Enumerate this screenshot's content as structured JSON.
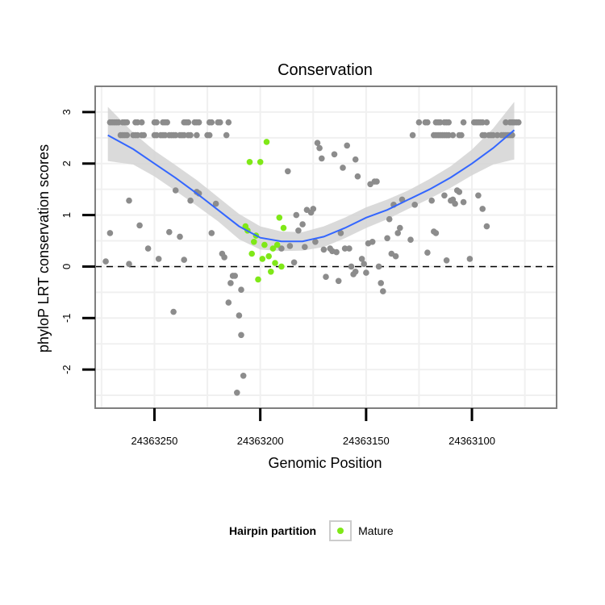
{
  "chart_data": {
    "type": "scatter",
    "title": "Conservation",
    "xlabel": "Genomic Position",
    "ylabel": "phyloP LRT conservation scores",
    "x_reversed": true,
    "xlim": [
      24363278,
      24363060
    ],
    "ylim": [
      -2.75,
      3.5
    ],
    "x_ticks": [
      24363250,
      24363200,
      24363150,
      24363100
    ],
    "x_tick_labels": [
      "24363250",
      "24363200",
      "24363150",
      "24363100"
    ],
    "y_ticks": [
      -2,
      -1,
      0,
      1,
      2,
      3
    ],
    "y_tick_labels": [
      "-2",
      "-1",
      "0",
      "1",
      "2",
      "3"
    ],
    "hline": {
      "y": 0,
      "style": "dashed"
    },
    "legend": {
      "title": "Hairpin partition",
      "entries": [
        {
          "label": "Mature",
          "color": "#7FE817"
        }
      ]
    },
    "colors": {
      "other": "#8C8C8C",
      "mature": "#7FE817",
      "smooth": "#3366FF",
      "ribbon": "#D3D3D3",
      "panel_border": "#7F7F7F",
      "grid": "#F0F0F0"
    },
    "series": [
      {
        "name": "Other",
        "points": [
          [
            24363271,
            2.8
          ],
          [
            24363270,
            2.8
          ],
          [
            24363269,
            2.8
          ],
          [
            24363268,
            2.8
          ],
          [
            24363267,
            2.8
          ],
          [
            24363265,
            2.8
          ],
          [
            24363264,
            2.8
          ],
          [
            24363263,
            2.8
          ],
          [
            24363259,
            2.8
          ],
          [
            24363258,
            2.8
          ],
          [
            24363256,
            2.8
          ],
          [
            24363250,
            2.8
          ],
          [
            24363249,
            2.8
          ],
          [
            24363246,
            2.8
          ],
          [
            24363245,
            2.8
          ],
          [
            24363244,
            2.8
          ],
          [
            24363236,
            2.8
          ],
          [
            24363235,
            2.8
          ],
          [
            24363234,
            2.8
          ],
          [
            24363231,
            2.8
          ],
          [
            24363230,
            2.8
          ],
          [
            24363229,
            2.8
          ],
          [
            24363224,
            2.8
          ],
          [
            24363223,
            2.8
          ],
          [
            24363220,
            2.8
          ],
          [
            24363219,
            2.8
          ],
          [
            24363215,
            2.8
          ],
          [
            24363266,
            2.55
          ],
          [
            24363265,
            2.55
          ],
          [
            24363264,
            2.55
          ],
          [
            24363263,
            2.55
          ],
          [
            24363260,
            2.55
          ],
          [
            24363259,
            2.55
          ],
          [
            24363258,
            2.55
          ],
          [
            24363256,
            2.55
          ],
          [
            24363255,
            2.55
          ],
          [
            24363250,
            2.55
          ],
          [
            24363249,
            2.55
          ],
          [
            24363247,
            2.55
          ],
          [
            24363246,
            2.55
          ],
          [
            24363245,
            2.55
          ],
          [
            24363243,
            2.55
          ],
          [
            24363242,
            2.55
          ],
          [
            24363241,
            2.55
          ],
          [
            24363240,
            2.55
          ],
          [
            24363238,
            2.55
          ],
          [
            24363237,
            2.55
          ],
          [
            24363236,
            2.55
          ],
          [
            24363234,
            2.55
          ],
          [
            24363233,
            2.55
          ],
          [
            24363230,
            2.55
          ],
          [
            24363225,
            2.55
          ],
          [
            24363224,
            2.55
          ],
          [
            24363216,
            2.55
          ],
          [
            24363125,
            2.8
          ],
          [
            24363122,
            2.8
          ],
          [
            24363121,
            2.8
          ],
          [
            24363117,
            2.8
          ],
          [
            24363116,
            2.8
          ],
          [
            24363115,
            2.8
          ],
          [
            24363113,
            2.8
          ],
          [
            24363112,
            2.8
          ],
          [
            24363111,
            2.8
          ],
          [
            24363104,
            2.8
          ],
          [
            24363099,
            2.8
          ],
          [
            24363098,
            2.8
          ],
          [
            24363097,
            2.8
          ],
          [
            24363096,
            2.8
          ],
          [
            24363095,
            2.8
          ],
          [
            24363093,
            2.8
          ],
          [
            24363084,
            2.8
          ],
          [
            24363082,
            2.8
          ],
          [
            24363081,
            2.8
          ],
          [
            24363080,
            2.8
          ],
          [
            24363079,
            2.8
          ],
          [
            24363078,
            2.8
          ],
          [
            24363128,
            2.55
          ],
          [
            24363118,
            2.55
          ],
          [
            24363117,
            2.55
          ],
          [
            24363116,
            2.55
          ],
          [
            24363115,
            2.55
          ],
          [
            24363114,
            2.55
          ],
          [
            24363113,
            2.55
          ],
          [
            24363112,
            2.55
          ],
          [
            24363111,
            2.55
          ],
          [
            24363109,
            2.55
          ],
          [
            24363106,
            2.55
          ],
          [
            24363105,
            2.55
          ],
          [
            24363095,
            2.55
          ],
          [
            24363094,
            2.55
          ],
          [
            24363092,
            2.55
          ],
          [
            24363091,
            2.55
          ],
          [
            24363090,
            2.55
          ],
          [
            24363088,
            2.55
          ],
          [
            24363086,
            2.55
          ],
          [
            24363085,
            2.55
          ],
          [
            24363084,
            2.55
          ],
          [
            24363083,
            2.55
          ],
          [
            24363082,
            2.55
          ],
          [
            24363081,
            2.55
          ],
          [
            24363273,
            0.1
          ],
          [
            24363271,
            0.65
          ],
          [
            24363262,
            1.28
          ],
          [
            24363262,
            0.05
          ],
          [
            24363257,
            0.8
          ],
          [
            24363253,
            0.35
          ],
          [
            24363248,
            0.15
          ],
          [
            24363243,
            0.67
          ],
          [
            24363241,
            -0.88
          ],
          [
            24363240,
            1.48
          ],
          [
            24363238,
            0.58
          ],
          [
            24363236,
            0.13
          ],
          [
            24363233,
            1.28
          ],
          [
            24363230,
            1.45
          ],
          [
            24363229,
            1.42
          ],
          [
            24363223,
            0.65
          ],
          [
            24363221,
            1.22
          ],
          [
            24363218,
            0.25
          ],
          [
            24363217,
            0.18
          ],
          [
            24363215,
            -0.7
          ],
          [
            24363214,
            -0.32
          ],
          [
            24363213,
            -0.18
          ],
          [
            24363212,
            -0.18
          ],
          [
            24363211,
            -2.45
          ],
          [
            24363210,
            -0.95
          ],
          [
            24363209,
            -1.33
          ],
          [
            24363209,
            -0.45
          ],
          [
            24363208,
            -2.12
          ],
          [
            24363190,
            0.35
          ],
          [
            24363187,
            1.85
          ],
          [
            24363186,
            0.4
          ],
          [
            24363184,
            0.08
          ],
          [
            24363183,
            1.0
          ],
          [
            24363182,
            0.7
          ],
          [
            24363180,
            0.82
          ],
          [
            24363179,
            0.38
          ],
          [
            24363178,
            1.1
          ],
          [
            24363176,
            1.05
          ],
          [
            24363175,
            1.12
          ],
          [
            24363174,
            0.48
          ],
          [
            24363173,
            2.4
          ],
          [
            24363172,
            2.3
          ],
          [
            24363171,
            2.1
          ],
          [
            24363170,
            0.33
          ],
          [
            24363169,
            -0.2
          ],
          [
            24363167,
            0.35
          ],
          [
            24363166,
            0.3
          ],
          [
            24363165,
            2.18
          ],
          [
            24363164,
            0.28
          ],
          [
            24363163,
            -0.28
          ],
          [
            24363162,
            0.65
          ],
          [
            24363161,
            1.92
          ],
          [
            24363160,
            0.35
          ],
          [
            24363159,
            2.35
          ],
          [
            24363158,
            0.35
          ],
          [
            24363157,
            0.0
          ],
          [
            24363156,
            -0.15
          ],
          [
            24363155,
            -0.1
          ],
          [
            24363155,
            2.08
          ],
          [
            24363154,
            1.75
          ],
          [
            24363152,
            0.15
          ],
          [
            24363151,
            0.05
          ],
          [
            24363150,
            -0.12
          ],
          [
            24363149,
            0.45
          ],
          [
            24363148,
            1.6
          ],
          [
            24363147,
            0.48
          ],
          [
            24363146,
            1.65
          ],
          [
            24363145,
            1.65
          ],
          [
            24363144,
            0.0
          ],
          [
            24363143,
            -0.32
          ],
          [
            24363142,
            -0.48
          ],
          [
            24363140,
            0.55
          ],
          [
            24363139,
            0.92
          ],
          [
            24363138,
            0.25
          ],
          [
            24363137,
            1.2
          ],
          [
            24363136,
            0.2
          ],
          [
            24363135,
            0.65
          ],
          [
            24363134,
            0.75
          ],
          [
            24363133,
            1.3
          ],
          [
            24363129,
            0.52
          ],
          [
            24363127,
            1.2
          ],
          [
            24363121,
            0.27
          ],
          [
            24363119,
            1.28
          ],
          [
            24363118,
            0.68
          ],
          [
            24363117,
            0.65
          ],
          [
            24363113,
            1.38
          ],
          [
            24363112,
            0.12
          ],
          [
            24363110,
            1.28
          ],
          [
            24363109,
            1.3
          ],
          [
            24363108,
            1.22
          ],
          [
            24363107,
            1.48
          ],
          [
            24363106,
            1.45
          ],
          [
            24363104,
            1.25
          ],
          [
            24363101,
            0.15
          ],
          [
            24363097,
            1.38
          ],
          [
            24363095,
            1.12
          ],
          [
            24363093,
            0.78
          ]
        ]
      },
      {
        "name": "Mature",
        "points": [
          [
            24363207,
            0.78
          ],
          [
            24363206,
            0.7
          ],
          [
            24363205,
            2.03
          ],
          [
            24363204,
            0.25
          ],
          [
            24363203,
            0.48
          ],
          [
            24363202,
            0.6
          ],
          [
            24363201,
            -0.25
          ],
          [
            24363200,
            2.03
          ],
          [
            24363199,
            0.15
          ],
          [
            24363198,
            0.42
          ],
          [
            24363197,
            2.42
          ],
          [
            24363196,
            0.2
          ],
          [
            24363195,
            -0.1
          ],
          [
            24363194,
            0.35
          ],
          [
            24363193,
            0.07
          ],
          [
            24363192,
            0.42
          ],
          [
            24363191,
            0.95
          ],
          [
            24363190,
            0.0
          ],
          [
            24363189,
            0.75
          ]
        ]
      }
    ],
    "smooth": {
      "x": [
        24363272,
        24363260,
        24363250,
        24363240,
        24363230,
        24363220,
        24363210,
        24363200,
        24363190,
        24363180,
        24363170,
        24363160,
        24363150,
        24363140,
        24363130,
        24363120,
        24363110,
        24363100,
        24363090,
        24363080
      ],
      "y": [
        2.55,
        2.28,
        2.0,
        1.72,
        1.42,
        1.1,
        0.78,
        0.56,
        0.49,
        0.49,
        0.58,
        0.75,
        0.95,
        1.1,
        1.3,
        1.5,
        1.73,
        2.0,
        2.3,
        2.65
      ],
      "lower": [
        2.05,
        1.98,
        1.75,
        1.47,
        1.18,
        0.88,
        0.53,
        0.33,
        0.3,
        0.31,
        0.38,
        0.55,
        0.75,
        0.92,
        1.12,
        1.32,
        1.53,
        1.77,
        1.98,
        2.08
      ],
      "upper": [
        3.1,
        2.6,
        2.25,
        1.97,
        1.68,
        1.35,
        1.02,
        0.78,
        0.68,
        0.67,
        0.78,
        0.95,
        1.15,
        1.3,
        1.48,
        1.7,
        1.95,
        2.27,
        2.68,
        3.2
      ]
    }
  }
}
